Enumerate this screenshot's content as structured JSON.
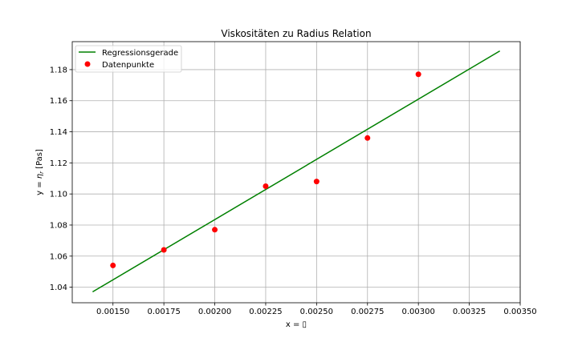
{
  "chart_data": {
    "type": "scatter",
    "title": "Viskositäten zu Radius Relation",
    "xlabel": "x = ▯",
    "ylabel_prefix": "y = ",
    "ylabel_symbol": "η",
    "ylabel_subscript": "r",
    "ylabel_suffix": " [Pas]",
    "xlim": [
      0.0013,
      0.0035
    ],
    "ylim": [
      1.03,
      1.198
    ],
    "x_ticks": [
      0.0015,
      0.00175,
      0.002,
      0.00225,
      0.0025,
      0.00275,
      0.003,
      0.00325,
      0.0035
    ],
    "x_tick_labels": [
      "0.00150",
      "0.00175",
      "0.00200",
      "0.00225",
      "0.00250",
      "0.00275",
      "0.00300",
      "0.00325",
      "0.00350"
    ],
    "y_ticks": [
      1.04,
      1.06,
      1.08,
      1.1,
      1.12,
      1.14,
      1.16,
      1.18
    ],
    "y_tick_labels": [
      "1.04",
      "1.06",
      "1.08",
      "1.10",
      "1.12",
      "1.14",
      "1.16",
      "1.18"
    ],
    "grid": true,
    "legend_position": "top-left",
    "series": [
      {
        "name": "Regressionsgerade",
        "kind": "line",
        "color": "#008000",
        "x": [
          0.0014,
          0.0034
        ],
        "y": [
          1.037,
          1.192
        ]
      },
      {
        "name": "Datenpunkte",
        "kind": "scatter",
        "color": "#ff0000",
        "x": [
          0.0015,
          0.00175,
          0.002,
          0.00225,
          0.0025,
          0.00275,
          0.003
        ],
        "y": [
          1.054,
          1.064,
          1.077,
          1.105,
          1.108,
          1.136,
          1.177
        ]
      }
    ]
  }
}
